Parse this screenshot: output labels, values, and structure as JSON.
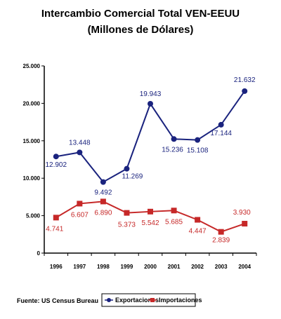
{
  "chart_data": {
    "type": "line",
    "title": "Intercambio Comercial Total VEN-EEUU",
    "subtitle": "(Millones de Dólares)",
    "categories": [
      "1996",
      "1997",
      "1998",
      "1999",
      "2000",
      "2001",
      "2002",
      "2003",
      "2004"
    ],
    "series": [
      {
        "name": "Exportaciones",
        "values": [
          12902,
          13448,
          9492,
          11269,
          19943,
          15236,
          15108,
          17144,
          21632
        ],
        "labels": [
          "12.902",
          "13.448",
          "9.492",
          "11.269",
          "19.943",
          "15.236",
          "15.108",
          "17.144",
          "21.632"
        ],
        "color": "#1a237e"
      },
      {
        "name": "Importaciones",
        "values": [
          4741,
          6607,
          6890,
          5373,
          5542,
          5685,
          4447,
          2839,
          3930
        ],
        "labels": [
          "4.741",
          "6.607",
          "6.890",
          "5.373",
          "5.542",
          "5.685",
          "4.447",
          "2.839",
          "3.930"
        ],
        "color": "#c62828"
      }
    ],
    "yticks": [
      "0",
      "5.000",
      "10.000",
      "15.000",
      "20.000",
      "25.000"
    ],
    "ylim": [
      0,
      25000
    ],
    "grid": false,
    "legend": "bottom-right",
    "source": "Fuente: US Census Bureau"
  }
}
